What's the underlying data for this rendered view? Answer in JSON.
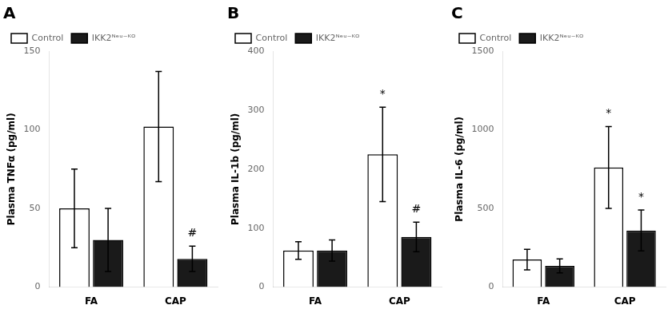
{
  "chart_data": [
    {
      "type": "bar",
      "title": "A",
      "y_label": "Plasma TNFα (pg/ml)",
      "categories": [
        "FA",
        "CAP"
      ],
      "series": [
        {
          "name": "Control",
          "color": "#ffffff",
          "values": [
            50,
            102
          ],
          "errors": [
            25,
            35
          ]
        },
        {
          "name": "IKK2ᴺᵉᵘ⁻ᴷᴼ",
          "color": "#1a1a1a",
          "values": [
            30,
            18
          ],
          "errors": [
            20,
            8
          ]
        }
      ],
      "annotations": [
        {
          "category": "CAP",
          "series": "IKK2ᴺᵉᵘ⁻ᴷᴼ",
          "text": "#"
        }
      ],
      "ylim": [
        0,
        150
      ],
      "yticks": [
        0,
        50,
        100,
        150
      ],
      "grid": false,
      "legend": "top"
    },
    {
      "type": "bar",
      "title": "B",
      "y_label": "Plasma IL-1b (pg/ml)",
      "categories": [
        "FA",
        "CAP"
      ],
      "series": [
        {
          "name": "Control",
          "color": "#ffffff",
          "values": [
            62,
            225
          ],
          "errors": [
            15,
            80
          ]
        },
        {
          "name": "IKK2ᴺᵉᵘ⁻ᴷᴼ",
          "color": "#1a1a1a",
          "values": [
            62,
            85
          ],
          "errors": [
            18,
            25
          ]
        }
      ],
      "annotations": [
        {
          "category": "CAP",
          "series": "Control",
          "text": "*"
        },
        {
          "category": "CAP",
          "series": "IKK2ᴺᵉᵘ⁻ᴷᴼ",
          "text": "#"
        }
      ],
      "ylim": [
        0,
        400
      ],
      "yticks": [
        0,
        100,
        200,
        300,
        400
      ],
      "grid": false,
      "legend": "top"
    },
    {
      "type": "bar",
      "title": "C",
      "y_label": "Plasma IL-6 (pg/ml)",
      "categories": [
        "FA",
        "CAP"
      ],
      "series": [
        {
          "name": "Control",
          "color": "#ffffff",
          "values": [
            175,
            760
          ],
          "errors": [
            65,
            260
          ]
        },
        {
          "name": "IKK2ᴺᵉᵘ⁻ᴷᴼ",
          "color": "#1a1a1a",
          "values": [
            135,
            360
          ],
          "errors": [
            45,
            130
          ]
        }
      ],
      "annotations": [
        {
          "category": "CAP",
          "series": "Control",
          "text": "*"
        },
        {
          "category": "CAP",
          "series": "IKK2ᴺᵉᵘ⁻ᴷᴼ",
          "text": "*"
        }
      ],
      "ylim": [
        0,
        1500
      ],
      "yticks": [
        0,
        500,
        1000,
        1500
      ],
      "grid": false,
      "legend": "top"
    }
  ]
}
